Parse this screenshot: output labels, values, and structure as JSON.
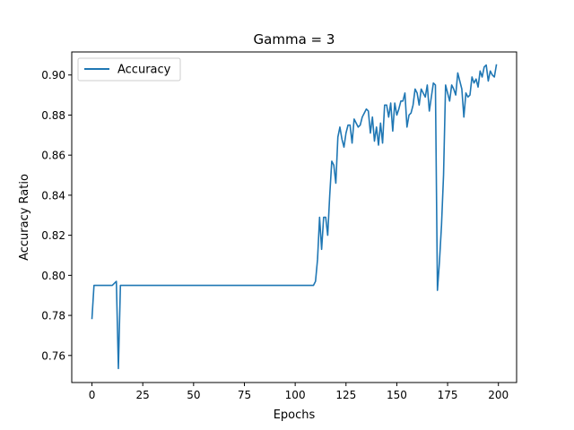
{
  "chart_data": {
    "type": "line",
    "title": "Gamma = 3",
    "xlabel": "Epochs",
    "ylabel": "Accuracy Ratio",
    "xlim": [
      -9.95,
      208.95
    ],
    "ylim": [
      0.7465,
      0.9115
    ],
    "xticks": [
      0,
      25,
      50,
      75,
      100,
      125,
      150,
      175,
      200
    ],
    "yticks": [
      0.76,
      0.78,
      0.8,
      0.82,
      0.84,
      0.86,
      0.88,
      0.9
    ],
    "ytick_labels": [
      "0.76",
      "0.78",
      "0.80",
      "0.82",
      "0.84",
      "0.86",
      "0.88",
      "0.90"
    ],
    "grid": false,
    "legend_position": "upper left",
    "colors": {
      "series": "#1f77b4",
      "axes": "#000000",
      "legend_border": "#cccccc"
    },
    "series": [
      {
        "name": "Accuracy",
        "x": [
          0,
          1,
          2,
          3,
          4,
          5,
          6,
          7,
          8,
          9,
          10,
          11,
          12,
          13,
          14,
          15,
          16,
          17,
          18,
          19,
          20,
          21,
          22,
          23,
          24,
          25,
          26,
          27,
          28,
          29,
          30,
          31,
          32,
          33,
          34,
          35,
          36,
          37,
          38,
          39,
          40,
          41,
          42,
          43,
          44,
          45,
          46,
          47,
          48,
          49,
          50,
          51,
          52,
          53,
          54,
          55,
          56,
          57,
          58,
          59,
          60,
          61,
          62,
          63,
          64,
          65,
          66,
          67,
          68,
          69,
          70,
          71,
          72,
          73,
          74,
          75,
          76,
          77,
          78,
          79,
          80,
          81,
          82,
          83,
          84,
          85,
          86,
          87,
          88,
          89,
          90,
          91,
          92,
          93,
          94,
          95,
          96,
          97,
          98,
          99,
          100,
          101,
          102,
          103,
          104,
          105,
          106,
          107,
          108,
          109,
          110,
          111,
          112,
          113,
          114,
          115,
          116,
          117,
          118,
          119,
          120,
          121,
          122,
          123,
          124,
          125,
          126,
          127,
          128,
          129,
          130,
          131,
          132,
          133,
          134,
          135,
          136,
          137,
          138,
          139,
          140,
          141,
          142,
          143,
          144,
          145,
          146,
          147,
          148,
          149,
          150,
          151,
          152,
          153,
          154,
          155,
          156,
          157,
          158,
          159,
          160,
          161,
          162,
          163,
          164,
          165,
          166,
          167,
          168,
          169,
          170,
          171,
          172,
          173,
          174,
          175,
          176,
          177,
          178,
          179,
          180,
          181,
          182,
          183,
          184,
          185,
          186,
          187,
          188,
          189,
          190,
          191,
          192,
          193,
          194,
          195,
          196,
          197,
          198,
          199
        ],
        "values": [
          0.7785,
          0.795,
          0.795,
          0.795,
          0.795,
          0.795,
          0.795,
          0.795,
          0.795,
          0.795,
          0.795,
          0.796,
          0.797,
          0.7535,
          0.795,
          0.795,
          0.795,
          0.795,
          0.795,
          0.795,
          0.795,
          0.795,
          0.795,
          0.795,
          0.795,
          0.795,
          0.795,
          0.795,
          0.795,
          0.795,
          0.795,
          0.795,
          0.795,
          0.795,
          0.795,
          0.795,
          0.795,
          0.795,
          0.795,
          0.795,
          0.795,
          0.795,
          0.795,
          0.795,
          0.795,
          0.795,
          0.795,
          0.795,
          0.795,
          0.795,
          0.795,
          0.795,
          0.795,
          0.795,
          0.795,
          0.795,
          0.795,
          0.795,
          0.795,
          0.795,
          0.795,
          0.795,
          0.795,
          0.795,
          0.795,
          0.795,
          0.795,
          0.795,
          0.795,
          0.795,
          0.795,
          0.795,
          0.795,
          0.795,
          0.795,
          0.795,
          0.795,
          0.795,
          0.795,
          0.795,
          0.795,
          0.795,
          0.795,
          0.795,
          0.795,
          0.795,
          0.795,
          0.795,
          0.795,
          0.795,
          0.795,
          0.795,
          0.795,
          0.795,
          0.795,
          0.795,
          0.795,
          0.795,
          0.795,
          0.795,
          0.795,
          0.795,
          0.795,
          0.795,
          0.795,
          0.795,
          0.795,
          0.795,
          0.795,
          0.795,
          0.797,
          0.808,
          0.829,
          0.813,
          0.829,
          0.829,
          0.82,
          0.84,
          0.857,
          0.855,
          0.846,
          0.869,
          0.874,
          0.868,
          0.864,
          0.871,
          0.875,
          0.875,
          0.866,
          0.878,
          0.876,
          0.874,
          0.875,
          0.879,
          0.881,
          0.883,
          0.882,
          0.871,
          0.879,
          0.867,
          0.874,
          0.865,
          0.876,
          0.866,
          0.885,
          0.885,
          0.879,
          0.886,
          0.872,
          0.886,
          0.88,
          0.883,
          0.887,
          0.887,
          0.891,
          0.874,
          0.88,
          0.881,
          0.885,
          0.893,
          0.891,
          0.885,
          0.893,
          0.891,
          0.889,
          0.895,
          0.882,
          0.889,
          0.896,
          0.895,
          0.7925,
          0.807,
          0.825,
          0.85,
          0.895,
          0.891,
          0.887,
          0.895,
          0.893,
          0.89,
          0.901,
          0.897,
          0.893,
          0.879,
          0.891,
          0.889,
          0.89,
          0.899,
          0.896,
          0.898,
          0.894,
          0.902,
          0.899,
          0.904,
          0.905,
          0.897,
          0.902,
          0.9,
          0.899,
          0.905
        ]
      }
    ]
  }
}
